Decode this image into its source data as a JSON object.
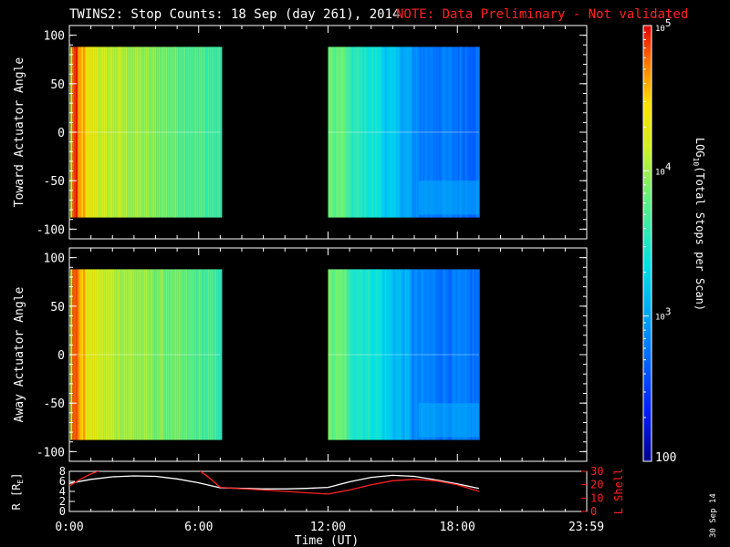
{
  "title": {
    "main": "TWINS2: Stop Counts: 18 Sep (day 261), 2014",
    "note": "NOTE: Data Preliminary - Not validated"
  },
  "colors": {
    "background": "#000000",
    "axes": "#ffffff",
    "note": "#ff2020",
    "lshell": "#ff2020",
    "radius": "#ffffff"
  },
  "chart_data": [
    {
      "type": "heatmap",
      "name": "toward-panel",
      "ylabel": "Toward Actuator Angle",
      "ylim": [
        -110,
        110
      ],
      "yticks": [
        100,
        50,
        0,
        -50,
        -100
      ],
      "xlim": [
        0,
        24
      ],
      "data_y_range": [
        -88,
        88
      ],
      "data_blocks": [
        {
          "x_start": 0.05,
          "x_end": 7.0,
          "profile": "early"
        },
        {
          "x_start": 12.0,
          "x_end": 19.0,
          "profile": "late"
        }
      ],
      "zscale": "log"
    },
    {
      "type": "heatmap",
      "name": "away-panel",
      "ylabel": "Away Actuator Angle",
      "ylim": [
        -110,
        110
      ],
      "yticks": [
        100,
        50,
        0,
        -50,
        -100
      ],
      "xlim": [
        0,
        24
      ],
      "data_y_range": [
        -88,
        88
      ],
      "data_blocks": [
        {
          "x_start": 0.05,
          "x_end": 7.0,
          "profile": "early"
        },
        {
          "x_start": 12.0,
          "x_end": 19.0,
          "profile": "late"
        }
      ],
      "zscale": "log"
    },
    {
      "type": "line",
      "name": "orbit-panel",
      "xlabel": "Time (UT)",
      "xticks": [
        "0:00",
        "6:00",
        "12:00",
        "18:00",
        "23:59"
      ],
      "xtick_values": [
        0,
        6,
        12,
        18,
        23.98
      ],
      "xlim": [
        0,
        24
      ],
      "ylabel_left": "R [R",
      "ylabel_left_sub": "E",
      "ylabel_left_end": "]",
      "ylim_left": [
        0,
        8
      ],
      "yticks_left": [
        "8",
        "6",
        "4",
        "2",
        "0"
      ],
      "ylabel_right": "L Shell",
      "ylim_right": [
        0,
        30
      ],
      "yticks_right": [
        "30",
        "20",
        "10",
        "0"
      ],
      "series": [
        {
          "axis": "left",
          "x": [
            0,
            1,
            2,
            3,
            4,
            5,
            6,
            7,
            8,
            9,
            10,
            11,
            12,
            13,
            14,
            15,
            16,
            17,
            18,
            19
          ],
          "y": [
            5.6,
            6.4,
            6.9,
            7.1,
            7.0,
            6.5,
            5.7,
            4.7,
            4.6,
            4.5,
            4.5,
            4.6,
            4.8,
            5.9,
            6.8,
            7.2,
            7.0,
            6.3,
            5.5,
            4.6
          ]
        },
        {
          "axis": "right",
          "x": [
            0,
            0.5,
            1.0,
            1.5,
            6.0,
            6.5,
            7.0,
            8,
            9,
            10,
            11,
            12,
            13,
            14,
            15,
            16,
            17,
            18,
            19
          ],
          "y": [
            19,
            24,
            28,
            31,
            31,
            25,
            18,
            17,
            16,
            15,
            14,
            13,
            16,
            20,
            23,
            24,
            23,
            20,
            15
          ]
        }
      ]
    }
  ],
  "colorbar": {
    "min": 100,
    "max": 100000,
    "label_pre": "LOG",
    "label_sub": "10",
    "label_post": "(Total Stops per Scan)",
    "ticks": [
      {
        "base": "10",
        "exp": "5",
        "value": 100000
      },
      {
        "base": "10",
        "exp": "4",
        "value": 10000
      },
      {
        "base": "10",
        "exp": "3",
        "value": 1000
      },
      {
        "base": "100",
        "exp": "",
        "value": 100
      }
    ]
  },
  "footer": {
    "date_stamp": "30 Sep 14"
  }
}
